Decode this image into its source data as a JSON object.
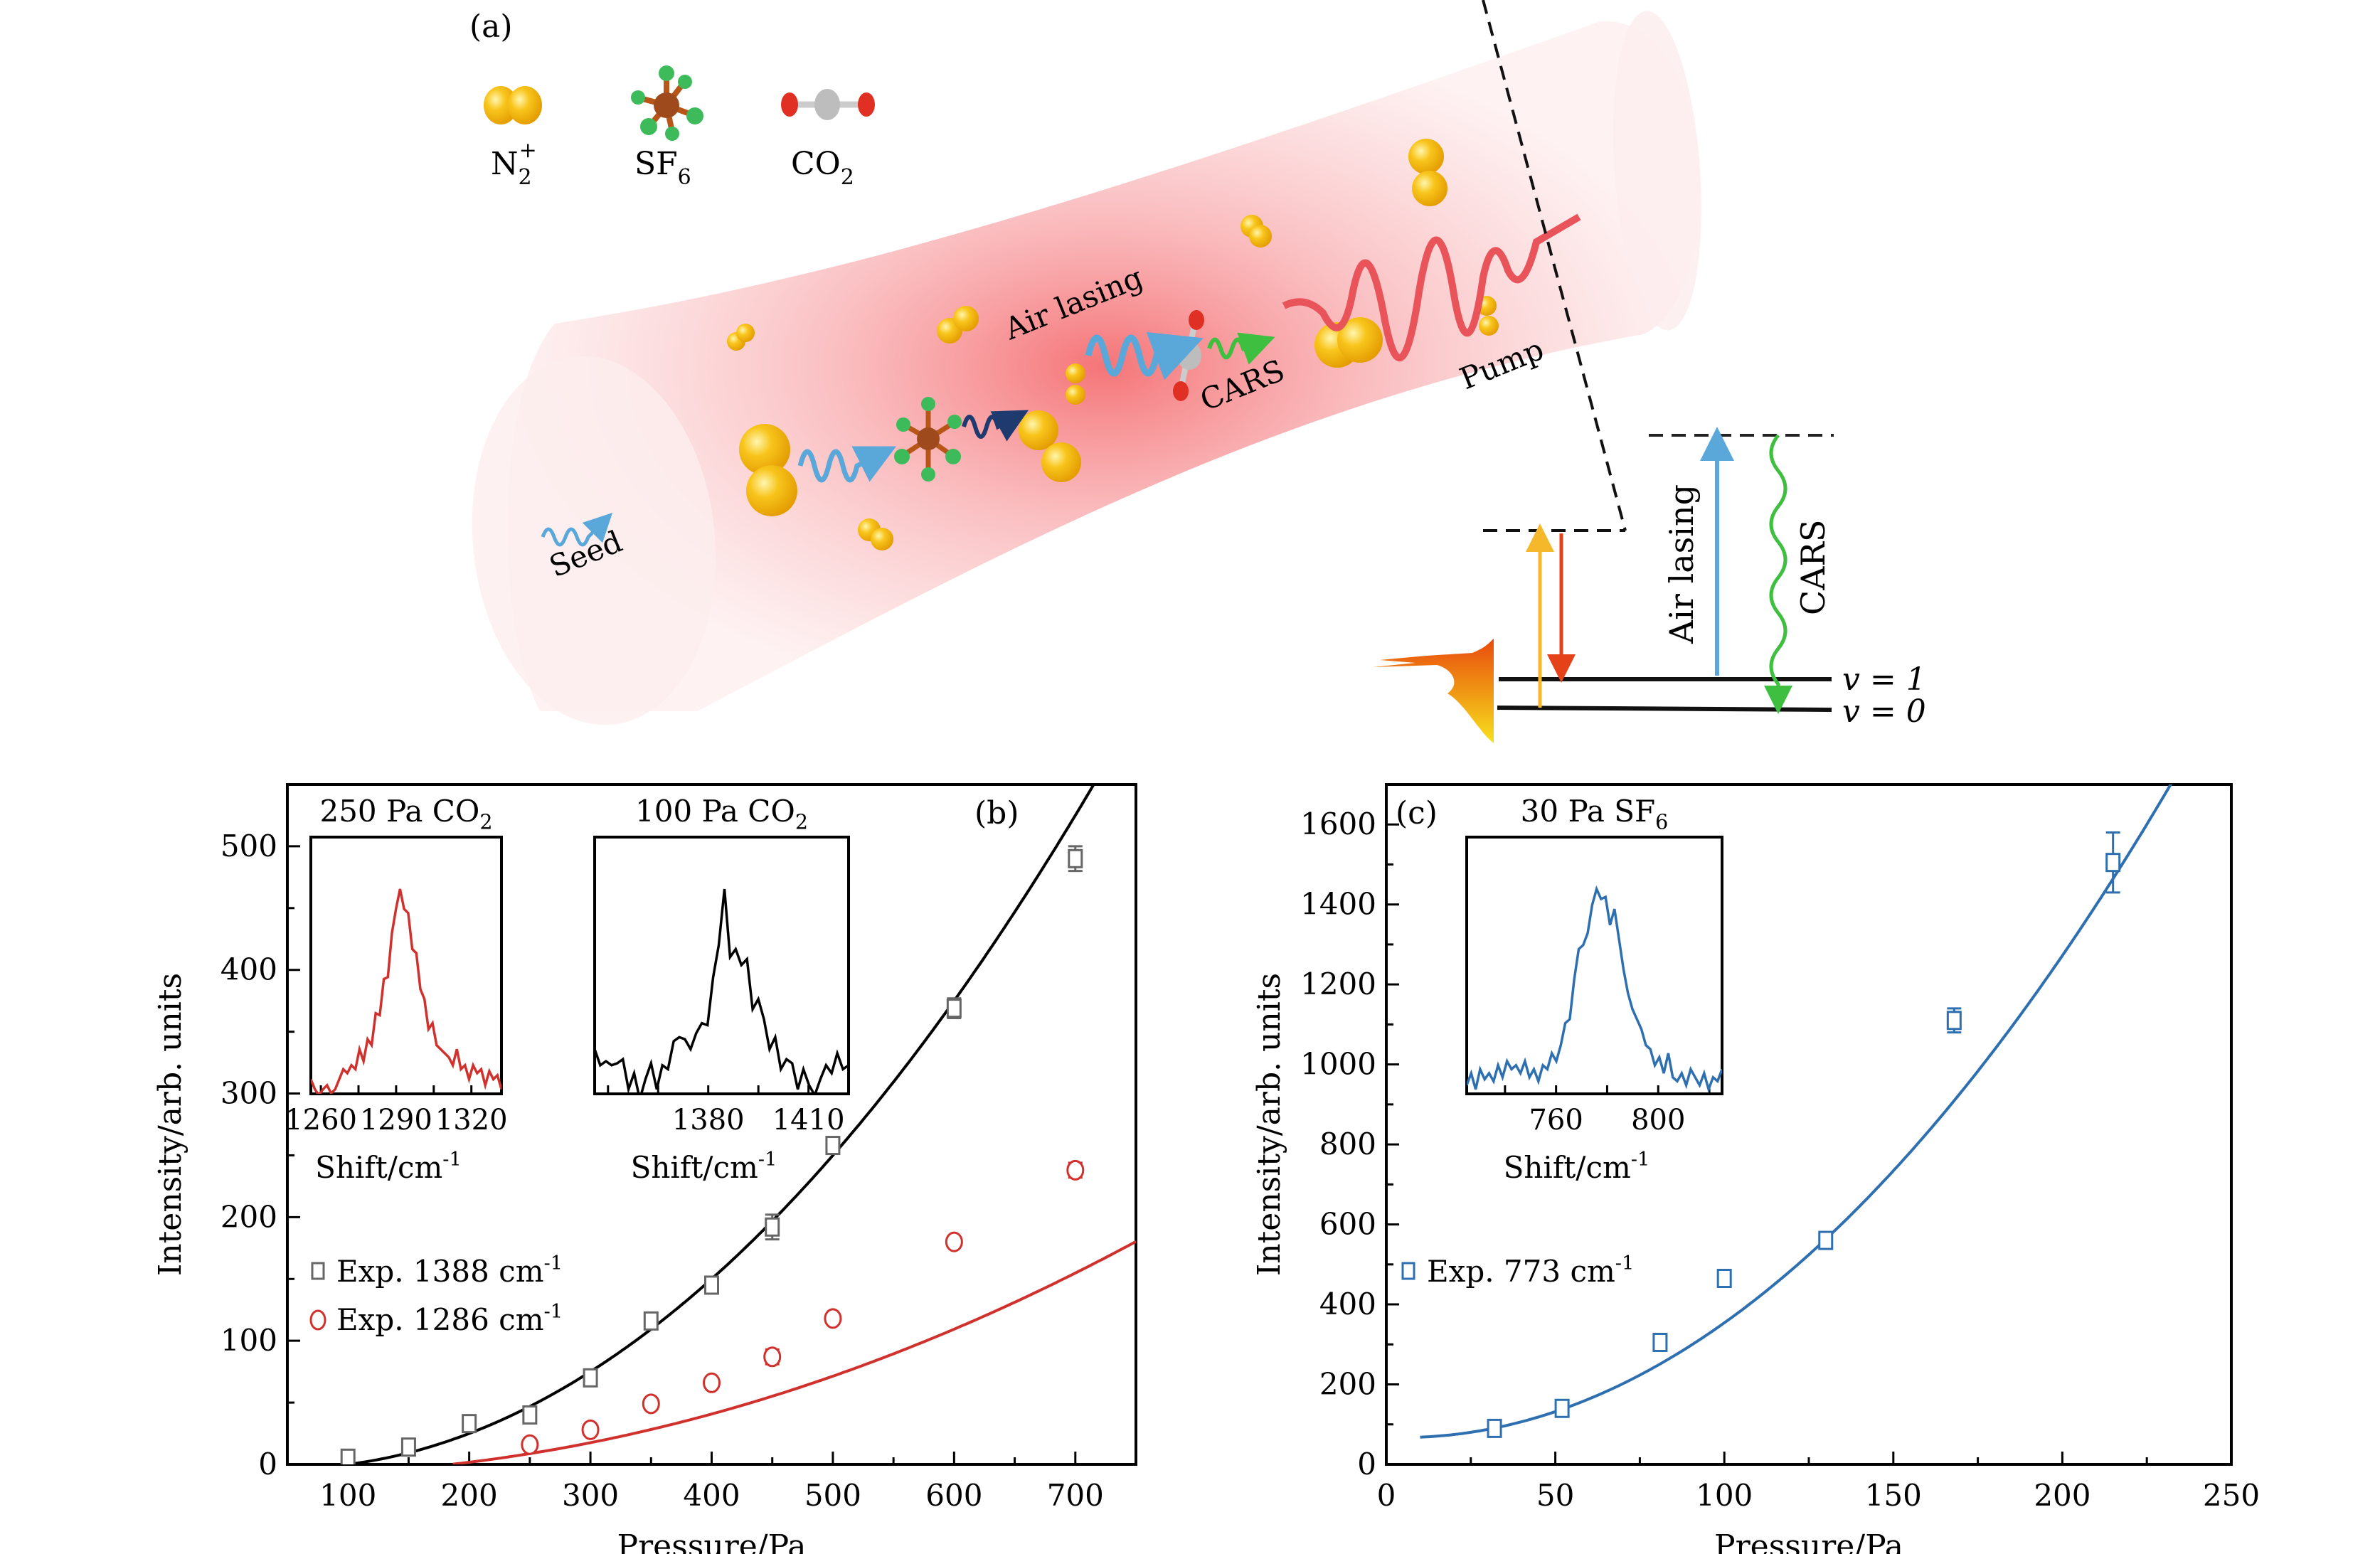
{
  "panel_a": {
    "label": "(a)",
    "legend": [
      {
        "name": "N2+",
        "main": "N",
        "sub": "2",
        "sup": "+"
      },
      {
        "name": "SF6",
        "main": "SF",
        "sub": "6",
        "sup": ""
      },
      {
        "name": "CO2",
        "main": "CO",
        "sub": "2",
        "sup": ""
      }
    ],
    "beam_labels": {
      "seed": "Seed",
      "air_lasing": "Air lasing",
      "cars": "CARS",
      "pump": "Pump"
    },
    "energy_diagram": {
      "air_lasing": "Air lasing",
      "cars": "CARS",
      "v1": "v = 1",
      "v0": "v = 0"
    }
  },
  "chart_data": [
    {
      "type": "scatter",
      "panel_label": "(b)",
      "xlabel": "Pressure/Pa",
      "ylabel": "Intensity/arb. units",
      "xlim": [
        50,
        750
      ],
      "ylim": [
        0,
        550
      ],
      "xticks": [
        100,
        200,
        300,
        400,
        500,
        600,
        700
      ],
      "yticks": [
        0,
        100,
        200,
        300,
        400,
        500
      ],
      "series": [
        {
          "name": "Exp. 1388 cm-1",
          "legend_main": "Exp. 1388 cm",
          "legend_sup": "-1",
          "marker": "square",
          "color": "#666666",
          "fit_color": "#000000",
          "x": [
            100,
            150,
            200,
            250,
            300,
            350,
            400,
            450,
            500,
            600,
            700
          ],
          "y": [
            5,
            14,
            33,
            40,
            70,
            116,
            145,
            192,
            258,
            369,
            490
          ],
          "err": [
            4,
            3,
            3,
            6,
            4,
            3,
            5,
            10,
            5,
            8,
            10
          ],
          "fit": {
            "a": 0.00125,
            "x0": 100
          }
        },
        {
          "name": "Exp. 1286 cm-1",
          "legend_main": "Exp. 1286 cm",
          "legend_sup": "-1",
          "marker": "circle",
          "color": "#d0312d",
          "fit_color": "#d0312d",
          "x": [
            250,
            300,
            350,
            400,
            450,
            500,
            600,
            700
          ],
          "y": [
            16,
            28,
            49,
            66,
            87,
            118,
            180,
            238
          ],
          "err": [
            3,
            3,
            3,
            4,
            6,
            3,
            3,
            6
          ],
          "fit": {
            "a": 0.00037,
            "b": 0.11,
            "x0": 185
          }
        }
      ],
      "insets": [
        {
          "title_main": "250 Pa CO",
          "title_sub": "2",
          "xlabel": "Shift/cm",
          "xlabel_sup": "-1",
          "xticks": [
            1260,
            1290,
            1320
          ],
          "xlim": [
            1256,
            1332
          ],
          "color": "#d0312d",
          "peak": 1286,
          "spectrum": [
            0.05,
            0.0,
            -0.03,
            0.0,
            0.02,
            -0.02,
            0.0,
            0.05,
            0.1,
            0.08,
            0.12,
            0.1,
            0.2,
            0.14,
            0.25,
            0.22,
            0.38,
            0.37,
            0.55,
            0.56,
            0.78,
            0.9,
            1.0,
            0.9,
            0.88,
            0.7,
            0.68,
            0.5,
            0.45,
            0.3,
            0.33,
            0.22,
            0.2,
            0.18,
            0.16,
            0.12,
            0.2,
            0.1,
            0.12,
            0.05,
            0.12,
            0.08,
            0.1,
            0.02,
            0.09,
            0.05,
            0.07,
            0.0
          ]
        },
        {
          "title_main": "100 Pa CO",
          "title_sub": "2",
          "xlabel": "Shift/cm",
          "xlabel_sup": "-1",
          "xticks": [
            1380,
            1410
          ],
          "xlim": [
            1346,
            1422
          ],
          "color": "#000000",
          "peak": 1388,
          "spectrum": [
            0.2,
            0.12,
            0.14,
            0.12,
            0.13,
            0.15,
            0.0,
            0.08,
            -0.05,
            0.05,
            0.13,
            0.0,
            0.12,
            0.1,
            0.24,
            0.26,
            0.25,
            0.2,
            0.28,
            0.33,
            0.32,
            0.56,
            0.72,
            1.0,
            0.66,
            0.7,
            0.62,
            0.65,
            0.4,
            0.45,
            0.35,
            0.2,
            0.26,
            0.1,
            0.15,
            0.13,
            0.0,
            0.1,
            0.02,
            -0.03,
            0.05,
            0.12,
            0.08,
            0.18,
            0.1,
            0.12
          ]
        }
      ]
    },
    {
      "type": "scatter",
      "panel_label": "(c)",
      "xlabel": "Pressure/Pa",
      "ylabel": "Intensity/arb. units",
      "xlim": [
        0,
        250
      ],
      "ylim": [
        0,
        1700
      ],
      "xticks": [
        0,
        50,
        100,
        150,
        200,
        250
      ],
      "yticks": [
        0,
        200,
        400,
        600,
        800,
        1000,
        1200,
        1400,
        1600
      ],
      "series": [
        {
          "name": "Exp. 773 cm-1",
          "legend_main": "Exp. 773 cm",
          "legend_sup": "-1",
          "marker": "square",
          "color": "#2e6fb0",
          "fit_color": "#2e6fb0",
          "x": [
            32,
            52,
            81,
            100,
            130,
            168,
            215
          ],
          "y": [
            90,
            140,
            305,
            465,
            560,
            1110,
            1505
          ],
          "err": [
            8,
            10,
            12,
            12,
            12,
            30,
            75
          ],
          "fit": {
            "a": 0.0316,
            "b": -0.3,
            "c": 68
          }
        }
      ],
      "insets": [
        {
          "title_main": "30 Pa SF",
          "title_sub": "6",
          "xlabel": "Shift/cm",
          "xlabel_sup": "-1",
          "xticks": [
            760,
            800
          ],
          "xlim": [
            725,
            825
          ],
          "color": "#2e6fb0",
          "peak": 773,
          "spectrum": [
            0.02,
            0.08,
            0.0,
            0.1,
            0.05,
            0.08,
            0.04,
            0.12,
            0.06,
            0.14,
            0.1,
            0.12,
            0.08,
            0.14,
            0.06,
            0.1,
            0.04,
            0.12,
            0.1,
            0.18,
            0.14,
            0.22,
            0.33,
            0.35,
            0.55,
            0.7,
            0.72,
            0.78,
            0.92,
            1.0,
            0.95,
            0.96,
            0.82,
            0.9,
            0.75,
            0.6,
            0.48,
            0.4,
            0.35,
            0.3,
            0.22,
            0.2,
            0.12,
            0.16,
            0.08,
            0.18,
            0.06,
            0.04,
            0.08,
            0.02,
            0.1,
            0.06,
            0.02,
            0.08,
            0.0,
            0.06,
            0.04,
            0.1
          ]
        }
      ]
    }
  ]
}
